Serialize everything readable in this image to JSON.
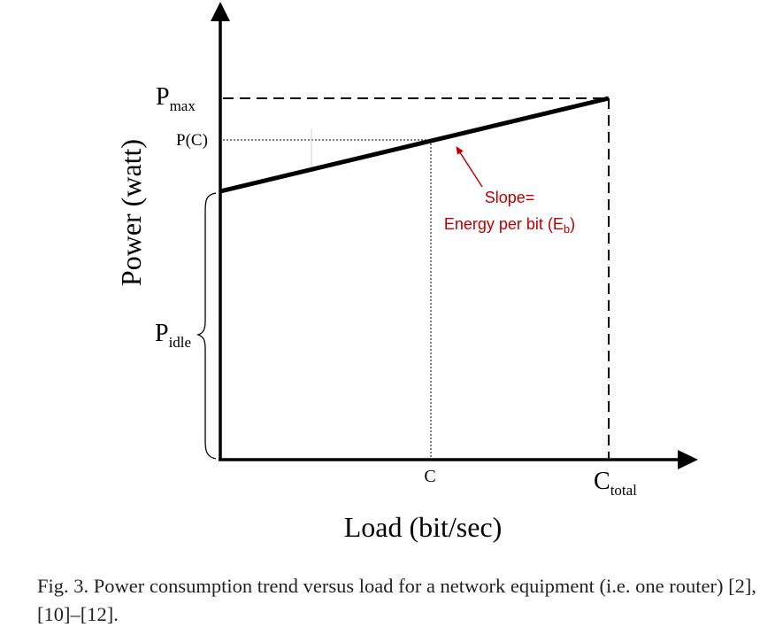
{
  "figure": {
    "y_axis_label": "Power (watt)",
    "x_axis_label": "Load (bit/sec)",
    "y_ticks": {
      "p_max": {
        "main": "P",
        "sub": "max"
      },
      "p_c": "P(C)",
      "p_idle": {
        "main": "P",
        "sub": "idle"
      }
    },
    "x_ticks": {
      "c": "C",
      "c_total": {
        "main": "C",
        "sub": "total"
      }
    },
    "annotation": {
      "line1": "Slope=",
      "line2": "Energy per bit (E",
      "line2_sub": "b",
      "line2_end": ")",
      "color": "#c00000"
    }
  },
  "caption": "Fig. 3.  Power consumption trend versus load for a network equipment (i.e. one router) [2], [10]–[12]."
}
